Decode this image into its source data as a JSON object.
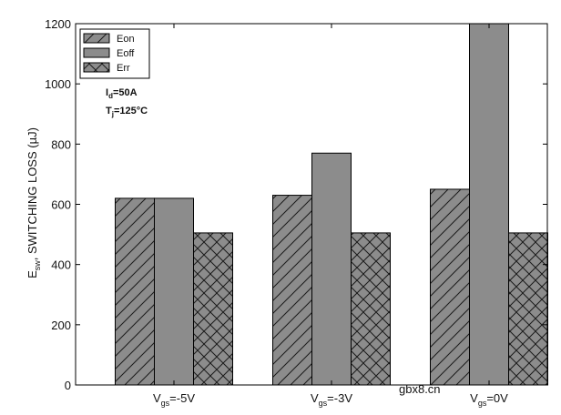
{
  "chart_data": {
    "type": "bar",
    "categories": [
      {
        "main": "V",
        "sub": "gs",
        "rest": "=-5V"
      },
      {
        "main": "V",
        "sub": "gs",
        "rest": "=-3V"
      },
      {
        "main": "V",
        "sub": "gs",
        "rest": "=0V"
      }
    ],
    "series": [
      {
        "name": "Eon",
        "values": [
          620,
          630,
          650
        ],
        "pattern": "diagonal",
        "color": "#8c8c8c"
      },
      {
        "name": "Eoff",
        "values": [
          620,
          770,
          1200
        ],
        "pattern": "solid",
        "color": "#8c8c8c"
      },
      {
        "name": "Err",
        "values": [
          505,
          505,
          505
        ],
        "pattern": "crosshatch",
        "color": "#8c8c8c"
      }
    ],
    "ylabel": {
      "main": "E",
      "sub": "sw",
      "rest": ", SWITCHING LOSS (µJ)"
    },
    "ylim": [
      0,
      1200
    ],
    "yticks": [
      0,
      200,
      400,
      600,
      800,
      1000,
      1200
    ],
    "legend_position": "top-left",
    "grid": false
  },
  "annotations": [
    {
      "main": "I",
      "sub": "d",
      "rest": "=50A"
    },
    {
      "main": "T",
      "sub": "j",
      "rest": "=125°C"
    }
  ],
  "watermark": "gbx8.cn"
}
